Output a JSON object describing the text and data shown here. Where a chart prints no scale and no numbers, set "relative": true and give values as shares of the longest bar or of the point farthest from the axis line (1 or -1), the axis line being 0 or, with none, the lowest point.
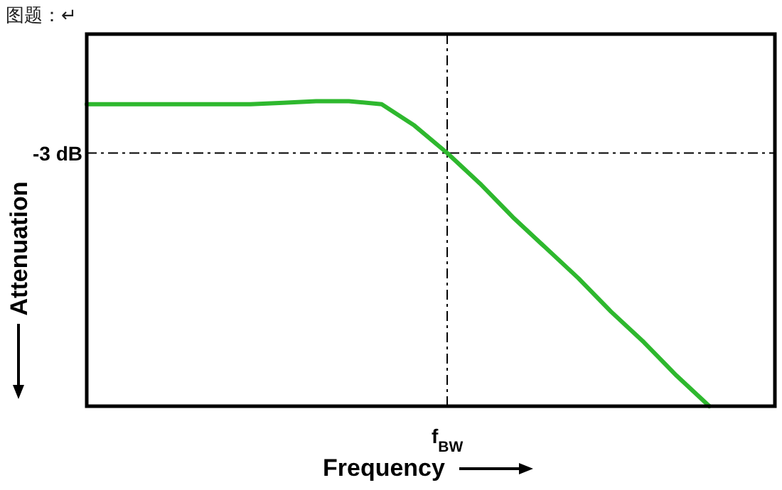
{
  "chart_data": {
    "type": "line",
    "title": "图题：↵",
    "xlabel": "Frequency",
    "ylabel": "Attenuation",
    "relative": true,
    "categories": [
      null,
      null,
      null,
      null,
      null,
      null,
      null,
      null,
      null,
      null,
      null,
      null,
      null,
      null,
      null,
      null,
      null,
      null,
      null,
      null,
      null,
      null
    ],
    "series": [
      {
        "color": "#2eb82e",
        "values": [
          0.99,
          0.99,
          0.99,
          0.99,
          0.99,
          0.99,
          0.995,
          1.0,
          1.0,
          0.99,
          0.92,
          0.83,
          0.73,
          0.62,
          0.52,
          0.42,
          0.31,
          0.21,
          0.1,
          0,
          null,
          null
        ]
      }
    ],
    "ref_lines": [
      {
        "axis": "y",
        "value": 0.83,
        "label": "-3 dB",
        "line_style": "dashed"
      }
    ],
    "annotations": [
      "f$_{BW}$"
    ],
    "marker": "none",
    "line_style": "solid"
  }
}
